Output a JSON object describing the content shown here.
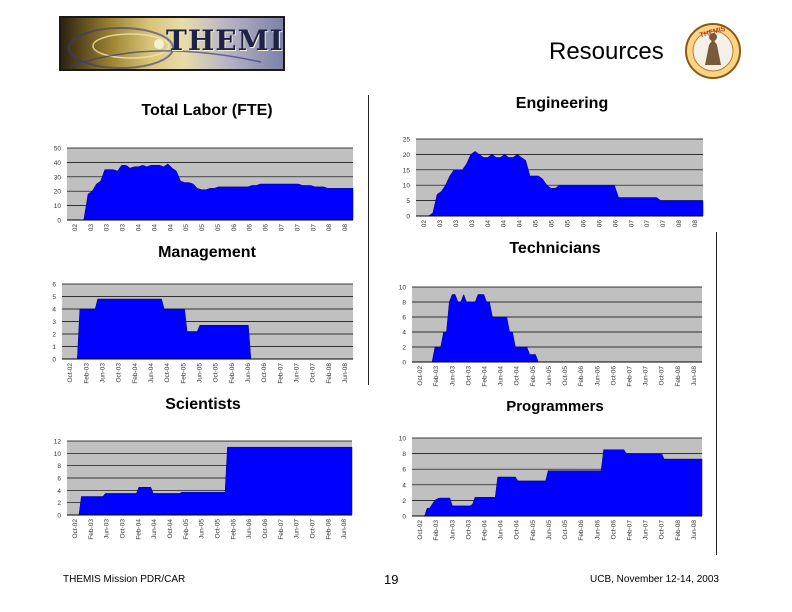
{
  "header": {
    "logo_text": "THEMIS",
    "slide_title": "Resources",
    "badge_text": "THEMIS"
  },
  "footer": {
    "left": "THEMIS Mission PDR/CAR",
    "page": "19",
    "right": "UCB, November 12-14, 2003"
  },
  "chart_data": [
    {
      "id": "total-labor",
      "type": "area",
      "title": "Total Labor (FTE)",
      "xlabel": "",
      "ylabel": "",
      "ylim": [
        0,
        50
      ],
      "yticks": [
        0,
        10,
        20,
        30,
        40,
        50
      ],
      "x_tick_labels": [
        "02",
        "03",
        "03",
        "03",
        "04",
        "04",
        "04",
        "05",
        "05",
        "05",
        "06",
        "06",
        "06",
        "07",
        "07",
        "07",
        "08",
        "08"
      ],
      "values": [
        0,
        0,
        0,
        0,
        0,
        18,
        20,
        25,
        27,
        35,
        35,
        35,
        34,
        38,
        38,
        36,
        37,
        37,
        38,
        37,
        38,
        38,
        38,
        37,
        39,
        36,
        34,
        27,
        26,
        26,
        25,
        22,
        21,
        21,
        22,
        22,
        23,
        23,
        23,
        23,
        23,
        23,
        23,
        23,
        24,
        24,
        25,
        25,
        25,
        25,
        25,
        25,
        25,
        25,
        25,
        25,
        24,
        24,
        24,
        23,
        23,
        23,
        22,
        22,
        22,
        22,
        22,
        22
      ]
    },
    {
      "id": "engineering",
      "type": "area",
      "title": "Engineering",
      "xlabel": "",
      "ylabel": "",
      "ylim": [
        0,
        25
      ],
      "yticks": [
        0,
        5,
        10,
        15,
        20,
        25
      ],
      "x_tick_labels": [
        "02",
        "03",
        "03",
        "03",
        "04",
        "04",
        "04",
        "05",
        "05",
        "05",
        "06",
        "06",
        "06",
        "07",
        "07",
        "07",
        "08",
        "08"
      ],
      "values": [
        0,
        0,
        0,
        0,
        1,
        7,
        8,
        10,
        13,
        15,
        15,
        15,
        17,
        20,
        21,
        20,
        19,
        19,
        20,
        19,
        19,
        20,
        19,
        19,
        20,
        19,
        18,
        13,
        13,
        13,
        12,
        10,
        9,
        9,
        10,
        10,
        10,
        10,
        10,
        10,
        10,
        10,
        10,
        10,
        10,
        10,
        10,
        10,
        6,
        6,
        6,
        6,
        6,
        6,
        6,
        6,
        6,
        6,
        5,
        5,
        5,
        5,
        5,
        5,
        5,
        5,
        5,
        5
      ]
    },
    {
      "id": "management",
      "type": "area",
      "title": "Management",
      "xlabel": "",
      "ylabel": "",
      "ylim": [
        0,
        6
      ],
      "yticks": [
        0,
        1,
        2,
        3,
        4,
        5,
        6
      ],
      "x_tick_labels": [
        "Oct-02",
        "Feb-03",
        "Jun-03",
        "Oct-03",
        "Feb-04",
        "Jun-04",
        "Oct-04",
        "Feb-05",
        "Jun-05",
        "Oct-05",
        "Feb-06",
        "Jun-06",
        "Oct-06",
        "Feb-07",
        "Jun-07",
        "Oct-07",
        "Feb-08",
        "Jun-08"
      ],
      "values": [
        0,
        0,
        0,
        0,
        0,
        0,
        0,
        4,
        4,
        4,
        4,
        4,
        4,
        4,
        4.8,
        4.8,
        4.8,
        4.8,
        4.8,
        4.8,
        4.8,
        4.8,
        4.8,
        4.8,
        4.8,
        4.8,
        4.8,
        4.8,
        4.8,
        4.8,
        4.8,
        4.8,
        4.8,
        4.8,
        4.8,
        4.8,
        4.8,
        4.8,
        4.8,
        4.8,
        4,
        4,
        4,
        4,
        4,
        4,
        4,
        4,
        4,
        2.2,
        2.2,
        2.2,
        2.2,
        2.2,
        2.7,
        2.7,
        2.7,
        2.7,
        2.7,
        2.7,
        2.7,
        2.7,
        2.7,
        2.7,
        2.7,
        2.7,
        2.7,
        2.7,
        2.7,
        2.7,
        2.7,
        2.7,
        2.7,
        2.7,
        0,
        0,
        0,
        0,
        0,
        0,
        0,
        0,
        0,
        0,
        0,
        0,
        0,
        0,
        0,
        0,
        0,
        0,
        0,
        0,
        0,
        0,
        0,
        0,
        0,
        0,
        0,
        0,
        0,
        0,
        0,
        0,
        0,
        0,
        0,
        0,
        0,
        0,
        0,
        0
      ]
    },
    {
      "id": "technicians",
      "type": "area",
      "title": "Technicians",
      "xlabel": "",
      "ylabel": "",
      "ylim": [
        0,
        10
      ],
      "yticks": [
        0,
        2,
        4,
        6,
        8,
        10
      ],
      "x_tick_labels": [
        "Oct-02",
        "Feb-03",
        "Jun-03",
        "Oct-03",
        "Feb-04",
        "Jun-04",
        "Oct-04",
        "Feb-05",
        "Jun-05",
        "Oct-05",
        "Feb-06",
        "Jun-06",
        "Oct-06",
        "Feb-07",
        "Jun-07",
        "Oct-07",
        "Feb-08",
        "Jun-08"
      ],
      "values": [
        0,
        0,
        0,
        0,
        0,
        0,
        0,
        0,
        2,
        2,
        2,
        4,
        4,
        8,
        9,
        9,
        8,
        8,
        9,
        8,
        8,
        8,
        8,
        9,
        9,
        9,
        8,
        8,
        6,
        6,
        6,
        6,
        6,
        6,
        4,
        4,
        2,
        2,
        2,
        2,
        2,
        1,
        1,
        1,
        0,
        0,
        0,
        0,
        0,
        0,
        0,
        0,
        0,
        0,
        0,
        0,
        0,
        0,
        0,
        0,
        0,
        0,
        0,
        0,
        0,
        0,
        0,
        0,
        0,
        0,
        0,
        0,
        0,
        0,
        0,
        0,
        0,
        0,
        0,
        0,
        0,
        0,
        0,
        0,
        0,
        0,
        0,
        0,
        0,
        0,
        0,
        0,
        0,
        0,
        0,
        0,
        0,
        0,
        0,
        0,
        0
      ]
    },
    {
      "id": "scientists",
      "type": "area",
      "title": "Scientists",
      "xlabel": "",
      "ylabel": "",
      "ylim": [
        0,
        12
      ],
      "yticks": [
        0,
        2,
        4,
        6,
        8,
        10,
        12
      ],
      "x_tick_labels": [
        "Oct-02",
        "Feb-03",
        "Jun-03",
        "Oct-03",
        "Feb-04",
        "Jun-04",
        "Oct-04",
        "Feb-05",
        "Jun-05",
        "Oct-05",
        "Feb-06",
        "Jun-06",
        "Oct-06",
        "Feb-07",
        "Jun-07",
        "Oct-07",
        "Feb-08",
        "Jun-08"
      ],
      "values": [
        0,
        0,
        0,
        0,
        0,
        0,
        3,
        3,
        3,
        3,
        3,
        3,
        3,
        3,
        3,
        3,
        3.5,
        3.5,
        3.5,
        3.5,
        3.5,
        3.5,
        3.5,
        3.5,
        3.5,
        3.5,
        3.5,
        3.5,
        3.5,
        3.5,
        4.5,
        4.5,
        4.5,
        4.5,
        4.5,
        4.5,
        3.5,
        3.5,
        3.5,
        3.5,
        3.5,
        3.5,
        3.5,
        3.5,
        3.5,
        3.5,
        3.5,
        3.5,
        3.7,
        3.7,
        3.7,
        3.7,
        3.7,
        3.7,
        3.7,
        3.7,
        3.7,
        3.7,
        3.7,
        3.7,
        3.7,
        3.7,
        3.7,
        3.7,
        3.7,
        3.7,
        3.7,
        11,
        11,
        11,
        11,
        11,
        11,
        11,
        11,
        11,
        11,
        11,
        11,
        11,
        11,
        11,
        11,
        11,
        11,
        11,
        11,
        11,
        11,
        11,
        11,
        11,
        11,
        11,
        11,
        11,
        11,
        11,
        11,
        11,
        11,
        11,
        11,
        11,
        11,
        11,
        11,
        11,
        11,
        11,
        11,
        11,
        11,
        11,
        11,
        11,
        11,
        11,
        11
      ]
    },
    {
      "id": "programmers",
      "type": "area",
      "title": "Programmers",
      "xlabel": "",
      "ylabel": "",
      "ylim": [
        0,
        10
      ],
      "yticks": [
        0,
        2,
        4,
        6,
        8,
        10
      ],
      "x_tick_labels": [
        "Oct-02",
        "Feb-03",
        "Jun-03",
        "Oct-03",
        "Feb-04",
        "Jun-04",
        "Oct-04",
        "Feb-05",
        "Jun-05",
        "Oct-05",
        "Feb-06",
        "Jun-06",
        "Oct-06",
        "Feb-07",
        "Jun-07",
        "Oct-07",
        "Feb-08",
        "Jun-08"
      ],
      "values": [
        0,
        0,
        0,
        0,
        0,
        0,
        1,
        1,
        1.5,
        2,
        2.2,
        2.3,
        2.3,
        2.3,
        2.3,
        2.3,
        1.3,
        1.3,
        1.3,
        1.3,
        1.3,
        1.3,
        1.3,
        1.3,
        1.5,
        2.4,
        2.4,
        2.4,
        2.4,
        2.4,
        2.4,
        2.4,
        2.4,
        2.4,
        5,
        5,
        5,
        5,
        5,
        5,
        5,
        5,
        4.5,
        4.5,
        4.5,
        4.5,
        4.5,
        4.5,
        4.5,
        4.5,
        4.5,
        4.5,
        4.5,
        4.5,
        5.8,
        5.8,
        5.8,
        5.8,
        5.8,
        5.8,
        5.8,
        5.8,
        5.8,
        5.8,
        5.8,
        5.8,
        5.8,
        5.8,
        5.8,
        5.8,
        5.8,
        5.8,
        5.8,
        5.8,
        5.8,
        5.8,
        8.5,
        8.5,
        8.5,
        8.5,
        8.5,
        8.5,
        8.5,
        8.5,
        8.5,
        8,
        8,
        8,
        8,
        8,
        8,
        8,
        8,
        8,
        8,
        8,
        8,
        8,
        8,
        8,
        7.3,
        7.3,
        7.3,
        7.3,
        7.3,
        7.3,
        7.3,
        7.3,
        7.3,
        7.3,
        7.3,
        7.3,
        7.3,
        7.3,
        7.3
      ]
    }
  ]
}
